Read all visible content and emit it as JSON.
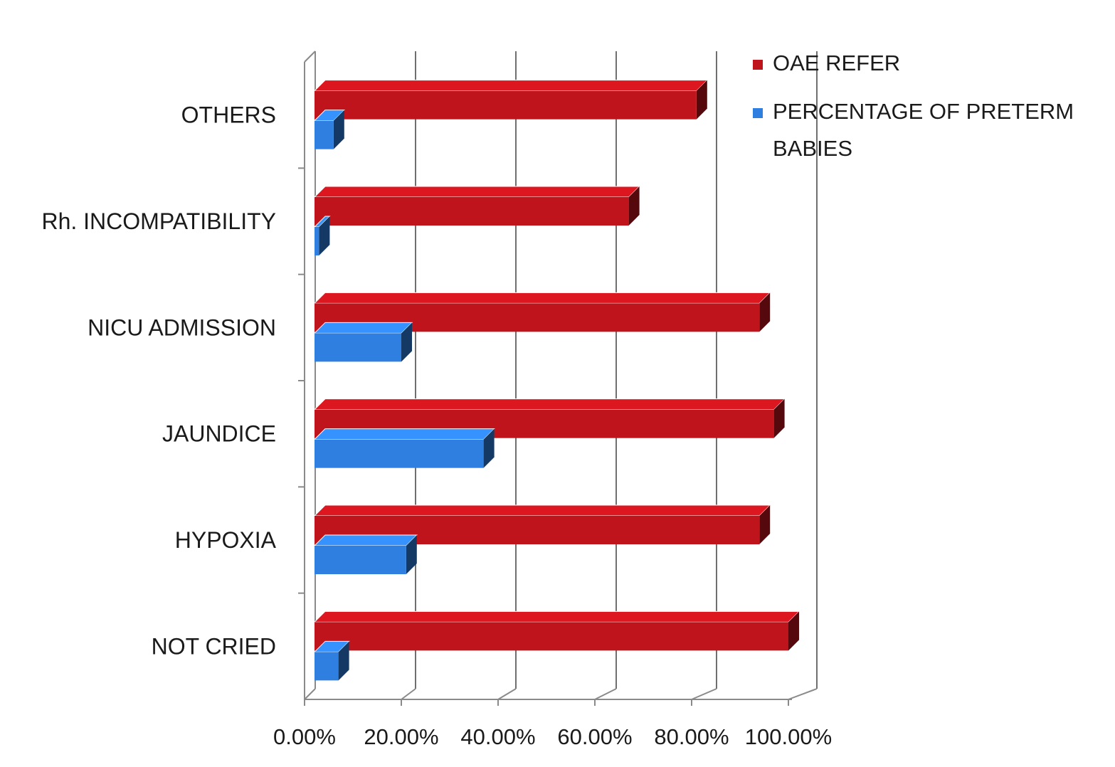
{
  "chart_data": {
    "type": "bar",
    "orientation": "horizontal",
    "style": "3d",
    "categories": [
      "NOT CRIED",
      "HYPOXIA",
      "JAUNDICE",
      "NICU ADMISSION",
      "Rh. INCOMPATIBILITY",
      "OTHERS"
    ],
    "series": [
      {
        "name": "OAE REFER",
        "color": "#c0141c",
        "values": [
          100,
          94,
          97,
          94,
          67,
          81
        ]
      },
      {
        "name": "PERCENTAGE OF PRETERM BABIES",
        "color": "#2e7fe0",
        "values": [
          7,
          21,
          37,
          20,
          3,
          6
        ]
      }
    ],
    "x_ticks": [
      "0.00%",
      "20.00%",
      "40.00%",
      "60.00%",
      "80.00%",
      "100.00%"
    ],
    "xlim": [
      0,
      100
    ],
    "grid": "vertical",
    "legend_position": "top-right",
    "title": "",
    "xlabel": "",
    "ylabel": ""
  },
  "legend": {
    "items": [
      {
        "label_lines": [
          "OAE REFER"
        ],
        "color": "#c0141c"
      },
      {
        "label_lines": [
          "PERCENTAGE OF PRETERM",
          "BABIES"
        ],
        "color": "#2e7fe0"
      }
    ]
  }
}
